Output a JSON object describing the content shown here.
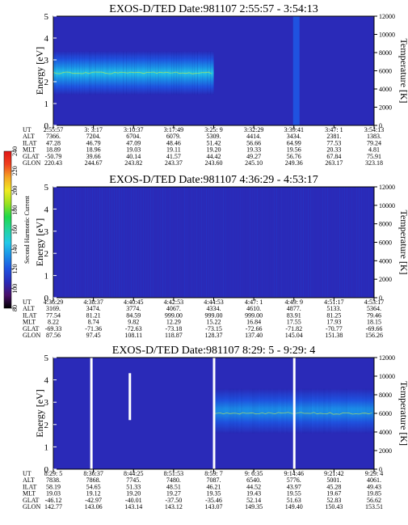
{
  "page": {
    "colorbar": {
      "label": "Second Harmonic Current",
      "ticks": [
        "80",
        "100",
        "120",
        "140",
        "160",
        "180",
        "200",
        "220",
        "240"
      ],
      "colors": [
        "#000000",
        "#4a0f6a",
        "#2a2ab8",
        "#1f52e0",
        "#1b8ee8",
        "#22c9e8",
        "#22d4a0",
        "#1ed94a",
        "#9be21f",
        "#f0ea22",
        "#f5a623",
        "#f0401f",
        "#e01616"
      ]
    },
    "panels": [
      {
        "title": "EXOS-D/TED   Date:981107  2:55:57 - 3:54:13",
        "ylabel": "Energy [eV]",
        "y2label": "Temperature [K]",
        "yticks": [
          "0",
          "1",
          "2",
          "3",
          "4",
          "5"
        ],
        "y2ticks": [
          "0",
          "2000",
          "4000",
          "6000",
          "8000",
          "10000",
          "12000"
        ],
        "row_labels": [
          "UT",
          "ALT",
          "ILAT",
          "MLT",
          "GLAT",
          "GLON"
        ],
        "columns": [
          [
            "2:55:57",
            "7366.",
            "47.28",
            "18.89",
            "-50.79",
            "220.43"
          ],
          [
            "3: 3:17",
            "7204.",
            "46.79",
            "18.96",
            "39.66",
            "244.67"
          ],
          [
            "3:10:37",
            "6704.",
            "47.09",
            "19.03",
            "40.14",
            "243.82"
          ],
          [
            "3:17:49",
            "6079.",
            "48.46",
            "19.11",
            "41.57",
            "243.37"
          ],
          [
            "3:25: 9",
            "5309.",
            "51.42",
            "19.20",
            "44.42",
            "243.60"
          ],
          [
            "3:32:29",
            "4414.",
            "56.66",
            "19.33",
            "49.27",
            "245.10"
          ],
          [
            "3:39:41",
            "3434.",
            "64.99",
            "19.56",
            "56.76",
            "249.36"
          ],
          [
            "3:47: 1",
            "2381.",
            "77.53",
            "20.33",
            "67.84",
            "263.17"
          ],
          [
            "3:54:13",
            "1383.",
            "79.24",
            "4.81",
            "75.91",
            "323.18"
          ]
        ]
      },
      {
        "title": "EXOS-D/TED   Date:981107  4:36:29 - 4:53:17",
        "ylabel": "Energy [eV]",
        "y2label": "Temperature [K]",
        "yticks": [
          "0",
          "1",
          "2",
          "3",
          "4",
          "5"
        ],
        "y2ticks": [
          "0",
          "2000",
          "4000",
          "6000",
          "8000",
          "10000",
          "12000"
        ],
        "row_labels": [
          "UT",
          "ALT",
          "ILAT",
          "MLT",
          "GLAT",
          "GLON"
        ],
        "columns": [
          [
            "4:36:29",
            "3169.",
            "77.54",
            "8.22",
            "-69.33",
            "87.56"
          ],
          [
            "4:38:37",
            "3474.",
            "81.21",
            "8.74",
            "-71.36",
            "97.45"
          ],
          [
            "4:40:45",
            "3774.",
            "84.59",
            "9.82",
            "-72.63",
            "108.11"
          ],
          [
            "4:42:53",
            "4067.",
            "999.00",
            "12.29",
            "-73.18",
            "118.87"
          ],
          [
            "4:44:53",
            "4334.",
            "999.00",
            "15.22",
            "-73.15",
            "128.37"
          ],
          [
            "4:47: 1",
            "4610.",
            "999.00",
            "16.84",
            "-72.66",
            "137.40"
          ],
          [
            "4:49: 9",
            "4877.",
            "83.91",
            "17.55",
            "-71.82",
            "145.04"
          ],
          [
            "4:51:17",
            "5133.",
            "81.25",
            "17.93",
            "-70.77",
            "151.38"
          ],
          [
            "4:53:17",
            "5364.",
            "79.46",
            "18.15",
            "-69.66",
            "156.26"
          ]
        ]
      },
      {
        "title": "EXOS-D/TED   Date:981107  8:29: 5 - 9:29: 4",
        "ylabel": "Energy [eV]",
        "y2label": "Temperature [K]",
        "yticks": [
          "0",
          "1",
          "2",
          "3",
          "4",
          "5"
        ],
        "y2ticks": [
          "0",
          "2000",
          "4000",
          "6000",
          "8000",
          "10000",
          "12000"
        ],
        "row_labels": [
          "UT",
          "ALT",
          "ILAT",
          "MLT",
          "GLAT",
          "GLON"
        ],
        "columns": [
          [
            "8:29: 5",
            "7838.",
            "58.19",
            "19.03",
            "-46.12",
            "142.77"
          ],
          [
            "8:36:37",
            "7868.",
            "54.65",
            "19.12",
            "-42.97",
            "143.06"
          ],
          [
            "8:44:25",
            "7745.",
            "51.33",
            "19.20",
            "-40.01",
            "143.14"
          ],
          [
            "8:51:53",
            "7480.",
            "48.51",
            "19.27",
            "-37.50",
            "143.12"
          ],
          [
            "8:59: 7",
            "7087.",
            "46.21",
            "19.35",
            "-35.46",
            "143.07"
          ],
          [
            "9: 6:35",
            "6540.",
            "44.52",
            "19.43",
            "52.14",
            "149.35"
          ],
          [
            "9:14:46",
            "5776.",
            "43.97",
            "19.55",
            "51.63",
            "149.40"
          ],
          [
            "9:21:42",
            "5001.",
            "45.28",
            "19.67",
            "52.83",
            "150.43"
          ],
          [
            "9:29: 4",
            "4061.",
            "49.43",
            "19.85",
            "56.62",
            "153.51"
          ]
        ]
      }
    ]
  },
  "chart_data": [
    {
      "type": "heatmap",
      "title": "EXOS-D/TED   Date:981107  2:55:57 - 3:54:13",
      "ylabel": "Energy [eV]",
      "y2label": "Temperature [K]",
      "ylim": [
        0,
        5
      ],
      "y2lim": [
        0,
        12000
      ],
      "x": [
        "2:55:57",
        "3: 3:17",
        "3:10:37",
        "3:17:49",
        "3:25: 9",
        "3:32:29",
        "3:39:41",
        "3:47: 1",
        "3:54:13"
      ],
      "band": {
        "x_start": "2:55:57",
        "x_end": "3:25: 9",
        "energy_low": 1.4,
        "energy_high": 3.4,
        "peak_energy": 2.4
      },
      "gaps": [
        "3:39:41"
      ],
      "colorbar_range": [
        80,
        240
      ]
    },
    {
      "type": "heatmap",
      "title": "EXOS-D/TED   Date:981107  4:36:29 - 4:53:17",
      "ylabel": "Energy [eV]",
      "y2label": "Temperature [K]",
      "ylim": [
        0,
        5
      ],
      "y2lim": [
        0,
        12000
      ],
      "x": [
        "4:36:29",
        "4:38:37",
        "4:40:45",
        "4:42:53",
        "4:44:53",
        "4:47: 1",
        "4:49: 9",
        "4:51:17",
        "4:53:17"
      ],
      "band": null,
      "colorbar_range": [
        80,
        240
      ]
    },
    {
      "type": "heatmap",
      "title": "EXOS-D/TED   Date:981107  8:29: 5 - 9:29: 4",
      "ylabel": "Energy [eV]",
      "y2label": "Temperature [K]",
      "ylim": [
        0,
        5
      ],
      "y2lim": [
        0,
        12000
      ],
      "x": [
        "8:29: 5",
        "8:36:37",
        "8:44:25",
        "8:51:53",
        "8:59: 7",
        "9: 6:35",
        "9:14:46",
        "9:21:42",
        "9:29: 4"
      ],
      "band": {
        "x_start": "8:59: 7",
        "x_end": "9:29: 4",
        "energy_low": 1.6,
        "energy_high": 3.6,
        "peak_energy": 2.5
      },
      "gaps": [
        "8:36:37",
        "8:59: 7",
        "9:14:46"
      ],
      "colorbar_range": [
        80,
        240
      ]
    }
  ]
}
